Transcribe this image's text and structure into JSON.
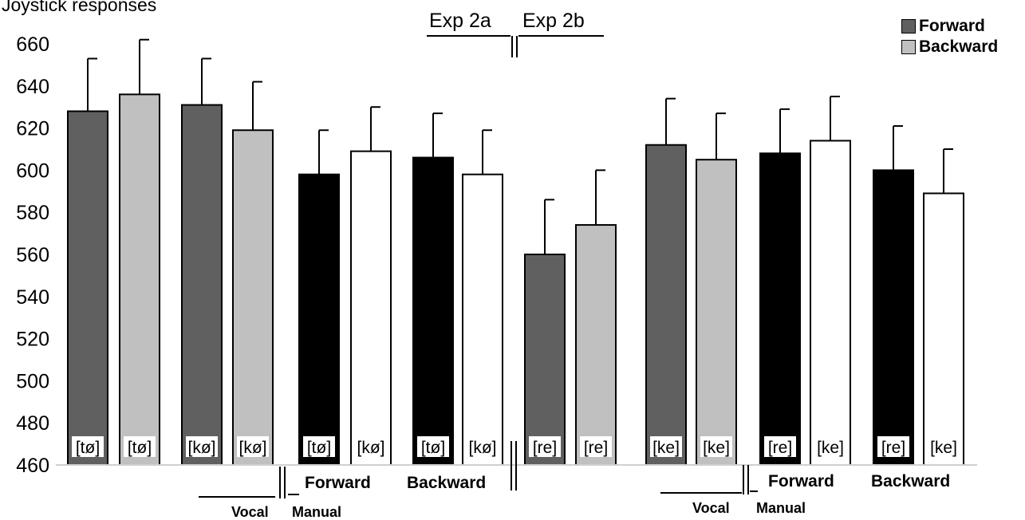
{
  "chart_data": {
    "type": "bar",
    "title": "Joystick responses",
    "ylim": [
      460,
      660
    ],
    "yticks": [
      460,
      480,
      500,
      520,
      540,
      560,
      580,
      600,
      620,
      640,
      660
    ],
    "grid": false,
    "legend_position": "top-right",
    "legend": [
      {
        "label": "Forward",
        "color": "#606060"
      },
      {
        "label": "Backward",
        "color": "#c0c0c0"
      }
    ],
    "bars": [
      {
        "label": "[tø]",
        "value": 628,
        "error": 25,
        "fill": "#606060"
      },
      {
        "label": "[tø]",
        "value": 636,
        "error": 26,
        "fill": "#c0c0c0"
      },
      {
        "label": "[kø]",
        "value": 631,
        "error": 22,
        "fill": "#606060"
      },
      {
        "label": "[kø]",
        "value": 619,
        "error": 23,
        "fill": "#c0c0c0"
      },
      {
        "label": "[tø]",
        "value": 598,
        "error": 21,
        "fill": "#000000"
      },
      {
        "label": "[kø]",
        "value": 609,
        "error": 21,
        "fill": "#ffffff"
      },
      {
        "label": "[tø]",
        "value": 606,
        "error": 21,
        "fill": "#000000"
      },
      {
        "label": "[kø]",
        "value": 598,
        "error": 21,
        "fill": "#ffffff"
      },
      {
        "label": "[re]",
        "value": 560,
        "error": 26,
        "fill": "#606060"
      },
      {
        "label": "[re]",
        "value": 574,
        "error": 26,
        "fill": "#c0c0c0"
      },
      {
        "label": "[ke]",
        "value": 612,
        "error": 22,
        "fill": "#606060"
      },
      {
        "label": "[ke]",
        "value": 605,
        "error": 22,
        "fill": "#c0c0c0"
      },
      {
        "label": "[re]",
        "value": 608,
        "error": 21,
        "fill": "#000000"
      },
      {
        "label": "[ke]",
        "value": 614,
        "error": 21,
        "fill": "#ffffff"
      },
      {
        "label": "[re]",
        "value": 600,
        "error": 21,
        "fill": "#000000"
      },
      {
        "label": "[ke]",
        "value": 589,
        "error": 21,
        "fill": "#ffffff"
      }
    ],
    "group_labels": {
      "exp2a": "Exp 2a",
      "exp2b": "Exp 2b",
      "vocal": "Vocal",
      "manual": "Manual",
      "forward": "Forward",
      "backward": "Backward"
    }
  }
}
